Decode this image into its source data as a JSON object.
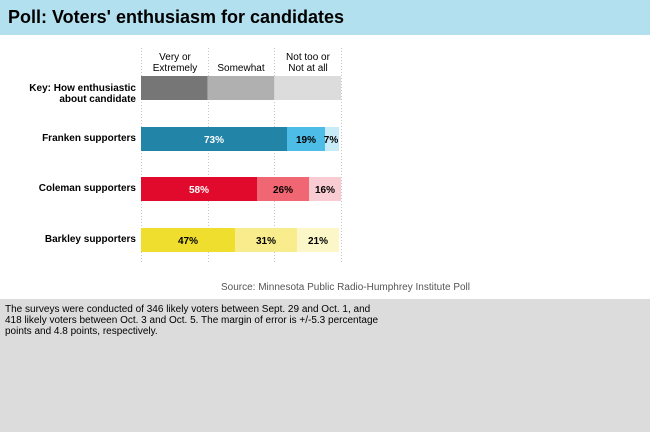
{
  "header": {
    "title": "Poll: Voters' enthusiasm for candidates"
  },
  "chart_data": {
    "type": "bar",
    "stacked": true,
    "orientation": "horizontal",
    "categories": [
      "Franken supporters",
      "Coleman supporters",
      "Barkley supporters"
    ],
    "series": [
      {
        "name": "Very or Extremely",
        "values": [
          73,
          58,
          47
        ]
      },
      {
        "name": "Somewhat",
        "values": [
          19,
          26,
          31
        ]
      },
      {
        "name": "Not too or Not at all",
        "values": [
          7,
          16,
          21
        ]
      }
    ],
    "value_labels": [
      [
        "73%",
        "19%",
        "7%"
      ],
      [
        "58%",
        "26%",
        "16%"
      ],
      [
        "47%",
        "31%",
        "21%"
      ]
    ],
    "colors": [
      [
        "#2284a6",
        "#4dbde7",
        "#c8ecf7"
      ],
      [
        "#e10a2c",
        "#f06673",
        "#f9ccd3"
      ],
      [
        "#f0de2e",
        "#f8ec8c",
        "#fcf7c8"
      ]
    ],
    "key": {
      "label": "Key: How enthusiastic about candidate",
      "headers": [
        "Very or Extremely",
        "Somewhat",
        "Not too or Not at all"
      ],
      "colors": [
        "#767676",
        "#b0b0b0",
        "#dcdcdc"
      ]
    },
    "xlim": [
      0,
      100
    ],
    "grid": true,
    "gridlines": [
      0,
      33.33,
      66.67,
      100
    ],
    "source": "Source: Minnesota Public Radio-Humphrey Institute Poll",
    "note": "The surveys were conducted of 346 likely voters between Sept. 29 and Oct. 1, and 418 likely voters between Oct. 3 and Oct. 5.  The margin of error is +/-5.3 percentage points and 4.8 points, respectively."
  }
}
